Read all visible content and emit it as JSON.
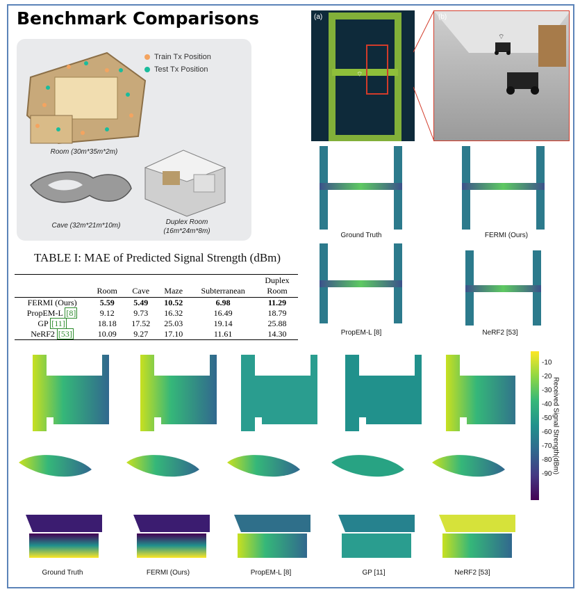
{
  "title": "Benchmark Comparisons",
  "scene_panel": {
    "legend": [
      {
        "label": "Train Tx Position",
        "color": "#f4a460"
      },
      {
        "label": "Test Tx Position",
        "color": "#1abc9c"
      }
    ],
    "room_caption": "Room (30m*35m*2m)",
    "cave_caption": "Cave (32m*21m*10m)",
    "duplex_caption_1": "Duplex Room",
    "duplex_caption_2": "(16m*24m*8m)"
  },
  "table": {
    "caption": "TABLE I: MAE of Predicted Signal Strength (dBm)",
    "headers": [
      "",
      "Room",
      "Cave",
      "Maze",
      "Subterranean",
      "Duplex Room"
    ],
    "rows": [
      {
        "method": "FERMI (Ours)",
        "ref": "",
        "values": [
          "5.59",
          "5.49",
          "10.52",
          "6.98",
          "11.29"
        ]
      },
      {
        "method": "PropEM-L",
        "ref": "[8]",
        "values": [
          "9.12",
          "9.73",
          "16.32",
          "16.49",
          "18.79"
        ]
      },
      {
        "method": "GP",
        "ref": "[11]",
        "values": [
          "18.18",
          "17.52",
          "25.03",
          "19.14",
          "25.88"
        ]
      },
      {
        "method": "NeRF2",
        "ref": "[53]",
        "values": [
          "10.09",
          "9.27",
          "17.10",
          "11.61",
          "14.30"
        ]
      }
    ]
  },
  "photo_labels": {
    "a": "(a)",
    "b": "(b)"
  },
  "map_grid_labels": [
    "Ground Truth",
    "FERMI (Ours)",
    "PropEM-L [8]",
    "NeRF2 [53]"
  ],
  "bottom_labels": [
    "Ground Truth",
    "FERMI (Ours)",
    "PropEM-L [8]",
    "GP [11]",
    "NeRF2 [53]"
  ],
  "colorbar": {
    "label": "Received Signal Strength(dBm)",
    "ticks": [
      "-10",
      "-20",
      "-30",
      "-40",
      "-50",
      "-60",
      "-70",
      "-80",
      "-90"
    ]
  }
}
